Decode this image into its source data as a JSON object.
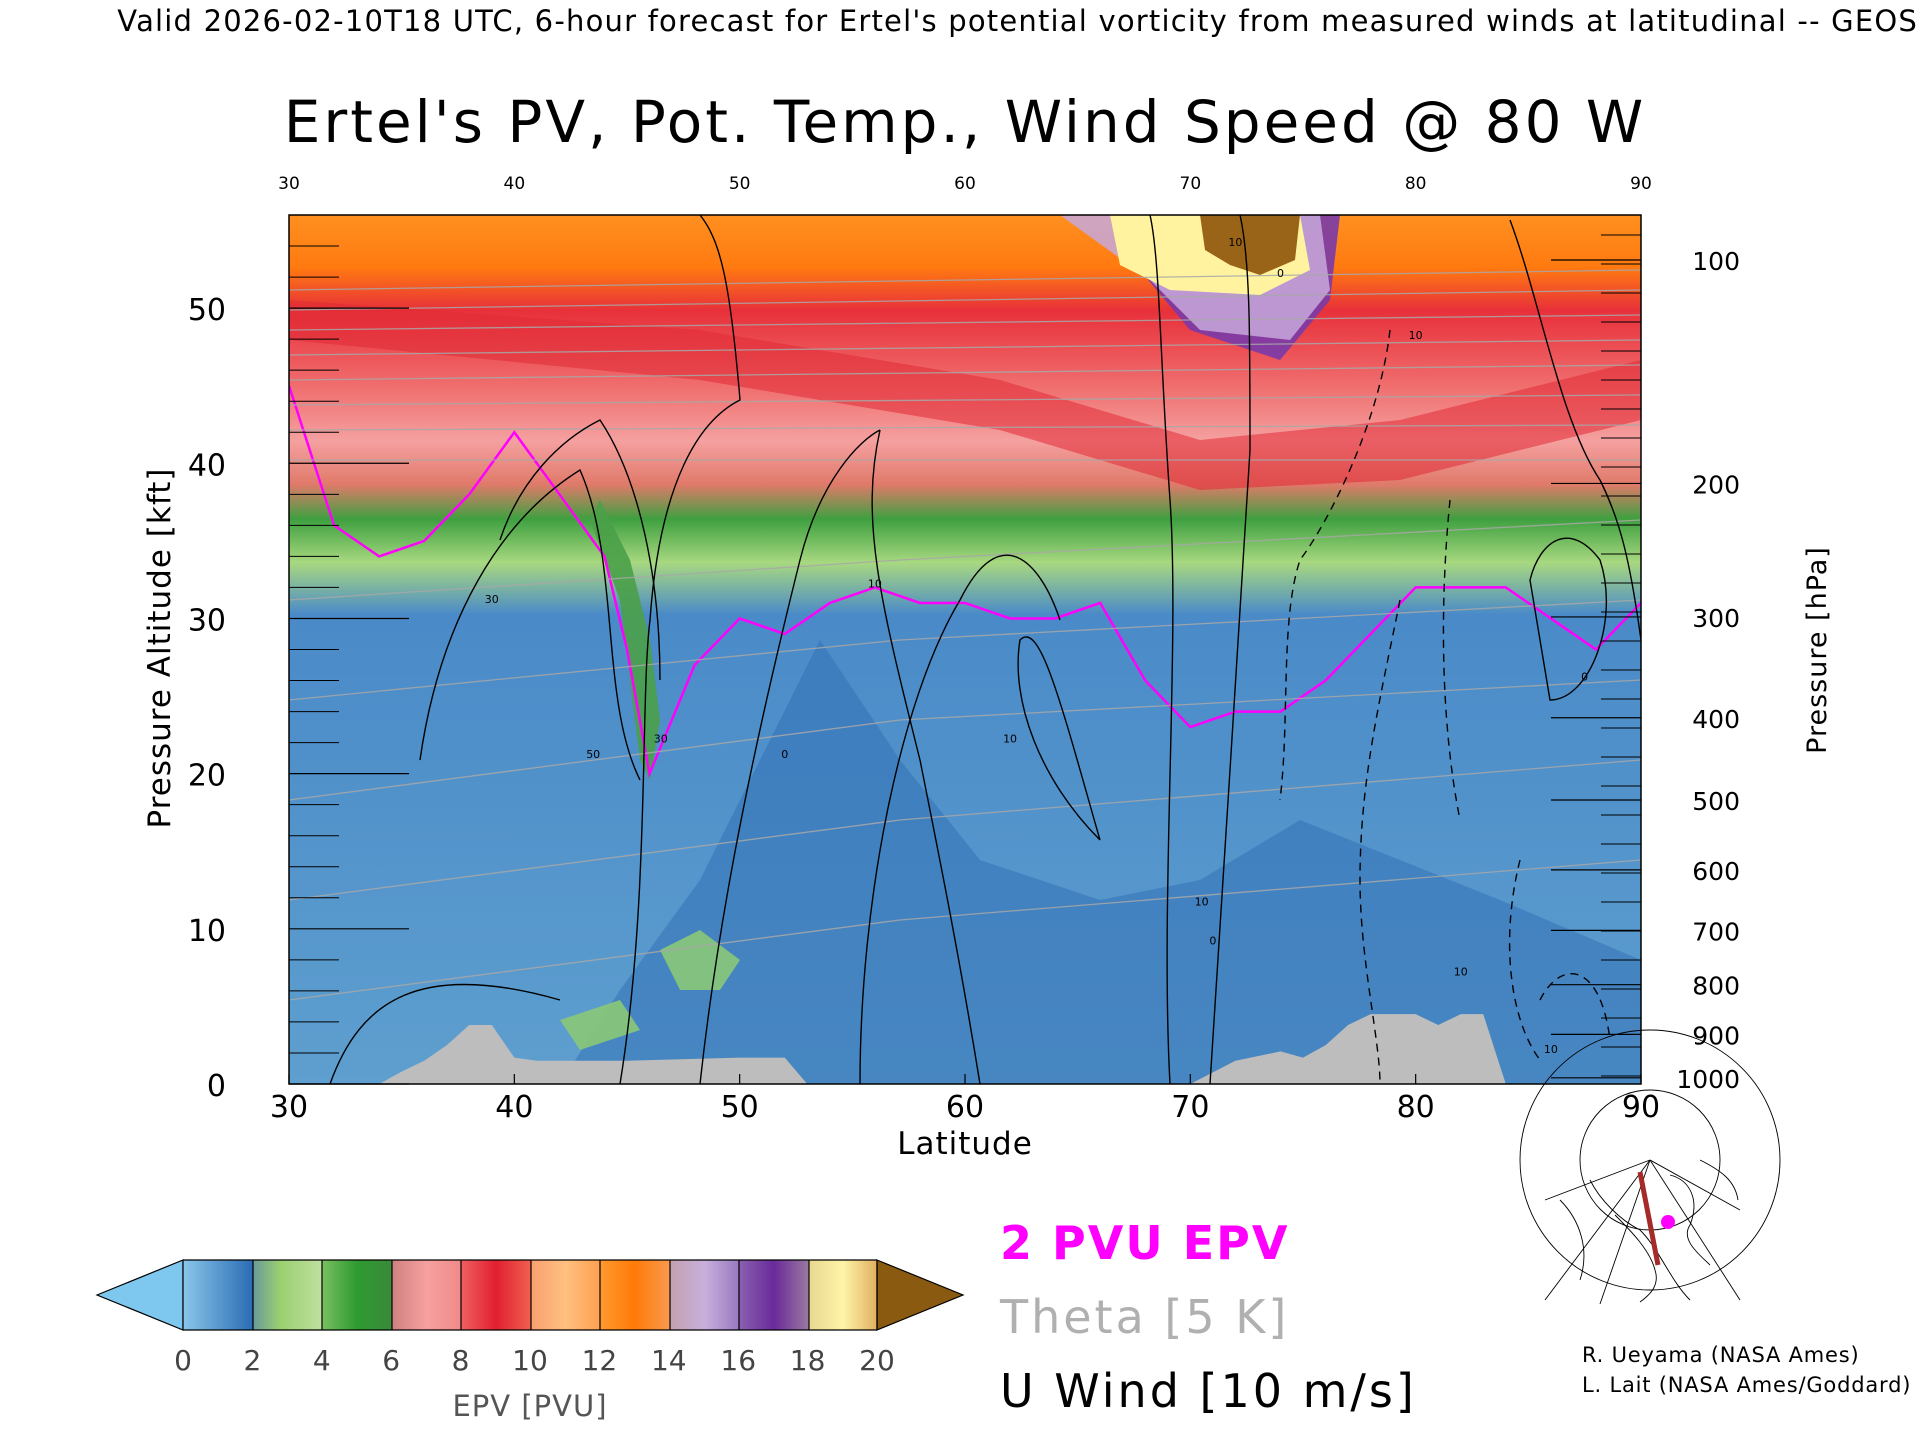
{
  "header": {
    "valid_line": "Valid 2026-02-10T18 UTC, 6-hour forecast for Ertel's potential vorticity from measured winds at latitudinal -- GEOS"
  },
  "chart_data": {
    "type": "heatmap",
    "title": "Ertel's PV, Pot. Temp., Wind Speed @ 80 W",
    "xlabel": "Latitude",
    "ylabel_left": "Pressure Altitude [kft]",
    "ylabel_right": "Pressure [hPa]",
    "xlim": [
      30,
      90
    ],
    "ylim": [
      0,
      56
    ],
    "x_ticks": [
      "30",
      "40",
      "50",
      "60",
      "70",
      "80",
      "90"
    ],
    "x_ticks_top": [
      "30",
      "40",
      "50",
      "60",
      "70",
      "80",
      "90"
    ],
    "y_ticks_left": [
      "0",
      "10",
      "20",
      "30",
      "40",
      "50"
    ],
    "y_ticks_right": [
      {
        "label": "100",
        "kft": 53.1
      },
      {
        "label": "200",
        "kft": 38.7
      },
      {
        "label": "300",
        "kft": 30.1
      },
      {
        "label": "400",
        "kft": 23.6
      },
      {
        "label": "500",
        "kft": 18.3
      },
      {
        "label": "600",
        "kft": 13.8
      },
      {
        "label": "700",
        "kft": 9.9
      },
      {
        "label": "800",
        "kft": 6.4
      },
      {
        "label": "900",
        "kft": 3.2
      },
      {
        "label": "1000",
        "kft": 0.4
      }
    ],
    "tropopause_2pvu": {
      "lat": [
        30,
        32,
        34,
        36,
        38,
        40,
        42,
        44,
        45,
        46,
        48,
        50,
        52,
        54,
        56,
        58,
        60,
        62,
        64,
        66,
        68,
        70,
        72,
        74,
        76,
        78,
        80,
        82,
        84,
        86,
        88,
        90
      ],
      "kft": [
        45,
        36,
        34,
        35,
        38,
        42,
        38,
        34,
        28,
        20,
        27,
        30,
        29,
        31,
        32,
        31,
        31,
        30,
        30,
        31,
        26,
        23,
        24,
        24,
        26,
        29,
        32,
        32,
        32,
        30,
        28,
        31
      ]
    },
    "surface_topography": {
      "lat": [
        30,
        34,
        35,
        36,
        37,
        38,
        39,
        40,
        41,
        45,
        50,
        52,
        53,
        70,
        72,
        74,
        75,
        76,
        77,
        78,
        80,
        81,
        82,
        83,
        84,
        90
      ],
      "kft": [
        0,
        0,
        0.8,
        1.5,
        2.5,
        3.8,
        3.8,
        1.7,
        1.5,
        1.5,
        1.7,
        1.7,
        0,
        0,
        1.5,
        2.1,
        1.7,
        2.5,
        3.8,
        4.5,
        4.5,
        3.8,
        4.5,
        4.5,
        0,
        0
      ]
    },
    "u_wind_contour_labels": [
      {
        "label": "10",
        "lat": 70.5,
        "kft": 11.5
      },
      {
        "label": "0",
        "lat": 71,
        "kft": 9
      },
      {
        "label": "30",
        "lat": 46.5,
        "kft": 22
      },
      {
        "label": "10",
        "lat": 56,
        "kft": 32
      },
      {
        "label": "10",
        "lat": 80,
        "kft": 48
      },
      {
        "label": "10",
        "lat": 82,
        "kft": 7
      },
      {
        "label": "0",
        "lat": 52,
        "kft": 21
      },
      {
        "label": "30",
        "lat": 39,
        "kft": 31
      },
      {
        "label": "50",
        "lat": 43.5,
        "kft": 21
      },
      {
        "label": "10",
        "lat": 62,
        "kft": 22
      },
      {
        "label": "10",
        "lat": 72,
        "kft": 54
      },
      {
        "label": "0",
        "lat": 74,
        "kft": 52
      },
      {
        "label": "10",
        "lat": 86,
        "kft": 2
      },
      {
        "label": "0",
        "lat": 87.5,
        "kft": 26
      }
    ],
    "colorbar": {
      "label": "EPV [PVU]",
      "ticks": [
        "0",
        "2",
        "4",
        "6",
        "8",
        "10",
        "12",
        "14",
        "16",
        "18",
        "20"
      ],
      "colors": [
        "#7ec8f0",
        "#3a7fc4",
        "#9dd07a",
        "#2f9e3a",
        "#f39a9a",
        "#e0303a",
        "#ffb060",
        "#ff8a10",
        "#c2a6d8",
        "#7a3aa8",
        "#fff0a0",
        "#8a5a10"
      ]
    },
    "legend": [
      {
        "name": "2 PVU EPV",
        "color": "#ff00ff"
      },
      {
        "name": "Theta [5 K]",
        "color": "#b0b0b0"
      },
      {
        "name": "U Wind [10 m/s]",
        "color": "#000000"
      }
    ]
  },
  "inset_map": {
    "section_line_color": "#a52a2a",
    "marker_color": "#ff00ff"
  },
  "credits": {
    "line1": "R. Ueyama (NASA Ames)",
    "line2": "L. Lait (NASA Ames/Goddard)"
  }
}
